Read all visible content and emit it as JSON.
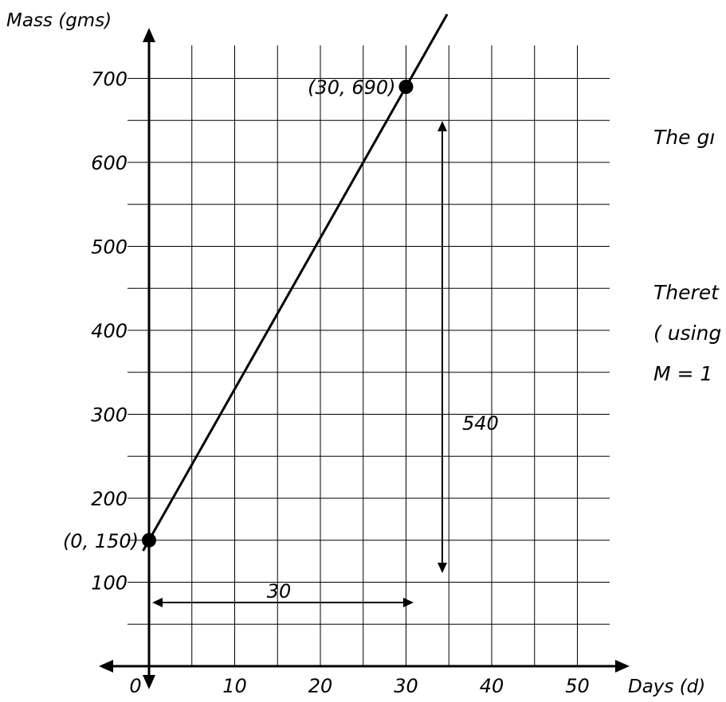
{
  "chart_data": {
    "type": "line",
    "xlabel": "Days (d)",
    "ylabel": "Mass (gms)",
    "xlim": [
      0,
      54
    ],
    "ylim": [
      0,
      740
    ],
    "grid": true,
    "x_ticks": [
      0,
      10,
      20,
      30,
      40,
      50
    ],
    "x_tick_labels": [
      "0",
      "10",
      "20",
      "30",
      "40",
      "50"
    ],
    "y_ticks": [
      100,
      200,
      300,
      400,
      500,
      600,
      700
    ],
    "y_tick_labels": [
      "100",
      "200",
      "300",
      "400",
      "500",
      "600",
      "700"
    ],
    "series": [
      {
        "x": [
          0,
          30
        ],
        "y": [
          150,
          690
        ]
      }
    ],
    "points": [
      {
        "x": 0,
        "y": 150,
        "label": "(0, 150)"
      },
      {
        "x": 30,
        "y": 690,
        "label": "(30, 690)"
      }
    ],
    "annotations": [
      {
        "label": "30"
      },
      {
        "label": "540"
      }
    ]
  },
  "side_text": [
    "The gı",
    "Theret",
    "( using",
    "M = 1"
  ]
}
